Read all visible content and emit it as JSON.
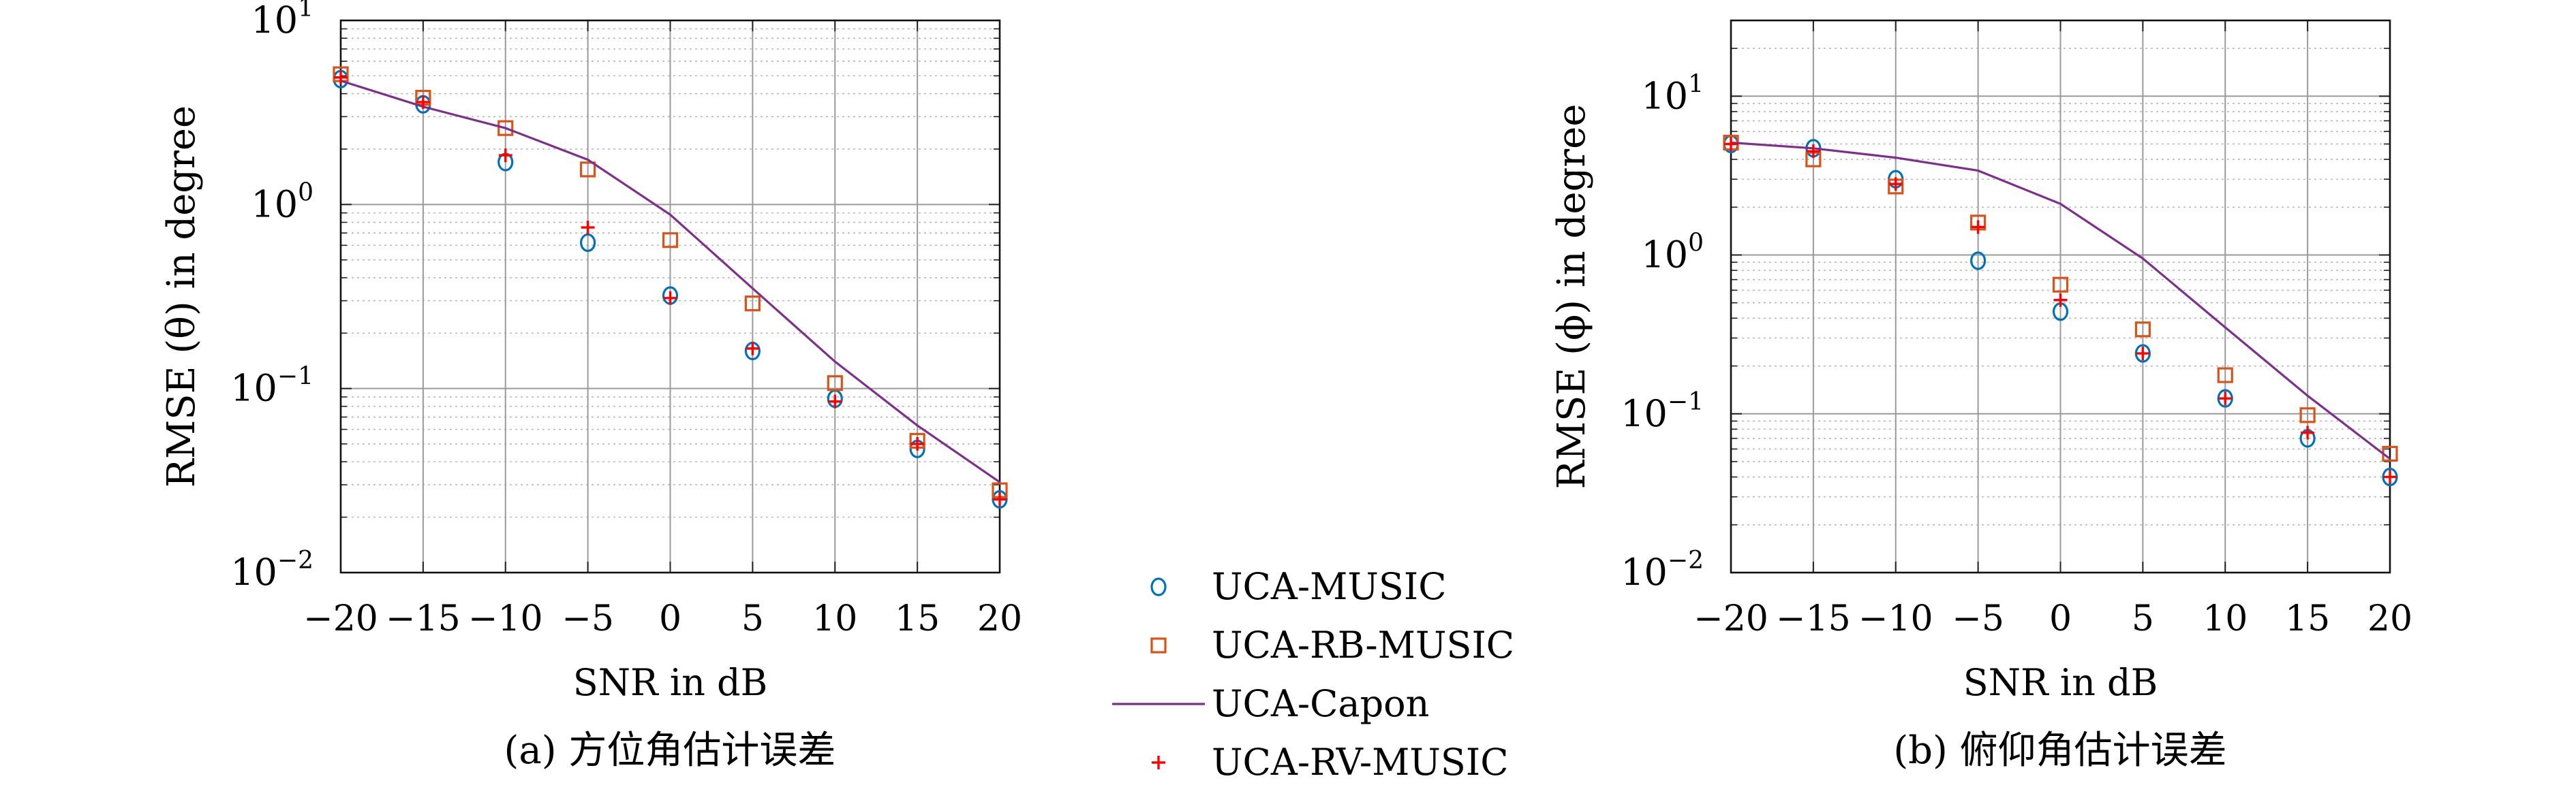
{
  "chart_data": [
    {
      "type": "scatter",
      "caption": "(a) 方位角估计误差",
      "xlabel": "SNR in dB",
      "ylabel": "RMSE (θ) in degree",
      "yscale": "log",
      "xlim": [
        -20,
        20
      ],
      "ylim": [
        0.01,
        10
      ],
      "xticks": [
        -20,
        -15,
        -10,
        -5,
        0,
        5,
        10,
        15,
        20
      ],
      "xtick_labels": [
        "−20",
        "−15",
        "−10",
        "−5",
        "0",
        "5",
        "10",
        "15",
        "20"
      ],
      "yticks": [
        0.01,
        0.1,
        1,
        10
      ],
      "ytick_labels": [
        {
          "base": "10",
          "exp": "−2"
        },
        {
          "base": "10",
          "exp": "−1"
        },
        {
          "base": "10",
          "exp": "0"
        },
        {
          "base": "10",
          "exp": "1"
        }
      ],
      "grid": true,
      "x": [
        -20,
        -15,
        -10,
        -5,
        0,
        5,
        10,
        15,
        20
      ],
      "series": [
        {
          "name": "UCA-MUSIC",
          "marker": "circle",
          "color": "#0072BD",
          "values": [
            4.8,
            3.5,
            1.7,
            0.62,
            0.32,
            0.16,
            0.088,
            0.047,
            0.025
          ]
        },
        {
          "name": "UCA-RB-MUSIC",
          "marker": "square",
          "color": "#D95319",
          "values": [
            5.1,
            3.8,
            2.6,
            1.55,
            0.64,
            0.29,
            0.107,
            0.052,
            0.028
          ]
        },
        {
          "name": "UCA-Capon",
          "marker": "line",
          "color": "#7E2F8E",
          "values": [
            4.7,
            3.4,
            2.6,
            1.75,
            0.88,
            0.35,
            0.14,
            0.063,
            0.031
          ]
        },
        {
          "name": "UCA-RV-MUSIC",
          "marker": "plus",
          "color": "#FF0000",
          "values": [
            4.9,
            3.6,
            1.85,
            0.75,
            0.31,
            0.165,
            0.085,
            0.05,
            0.025
          ]
        }
      ]
    },
    {
      "type": "scatter",
      "caption": "(b) 俯仰角估计误差",
      "xlabel": "SNR in dB",
      "ylabel": "RMSE (ϕ) in degree",
      "yscale": "log",
      "xlim": [
        -20,
        20
      ],
      "ylim": [
        0.01,
        30
      ],
      "xticks": [
        -20,
        -15,
        -10,
        -5,
        0,
        5,
        10,
        15,
        20
      ],
      "xtick_labels": [
        "−20",
        "−15",
        "−10",
        "−5",
        "0",
        "5",
        "10",
        "15",
        "20"
      ],
      "yticks": [
        0.01,
        0.1,
        1,
        10
      ],
      "ytick_labels": [
        {
          "base": "10",
          "exp": "−2"
        },
        {
          "base": "10",
          "exp": "−1"
        },
        {
          "base": "10",
          "exp": "0"
        },
        {
          "base": "10",
          "exp": "1"
        }
      ],
      "grid": true,
      "x": [
        -20,
        -15,
        -10,
        -5,
        0,
        5,
        10,
        15,
        20
      ],
      "series": [
        {
          "name": "UCA-MUSIC",
          "marker": "circle",
          "color": "#0072BD",
          "values": [
            5.0,
            4.7,
            3.0,
            0.92,
            0.44,
            0.24,
            0.125,
            0.07,
            0.04
          ]
        },
        {
          "name": "UCA-RB-MUSIC",
          "marker": "square",
          "color": "#D95319",
          "values": [
            5.1,
            4.0,
            2.7,
            1.6,
            0.65,
            0.34,
            0.175,
            0.098,
            0.056
          ]
        },
        {
          "name": "UCA-Capon",
          "marker": "line",
          "color": "#7E2F8E",
          "values": [
            5.1,
            4.7,
            4.1,
            3.4,
            2.1,
            0.95,
            0.35,
            0.13,
            0.052
          ]
        },
        {
          "name": "UCA-RV-MUSIC",
          "marker": "plus",
          "color": "#FF0000",
          "values": [
            5.0,
            4.5,
            2.8,
            1.5,
            0.52,
            0.24,
            0.125,
            0.076,
            0.04
          ]
        }
      ]
    }
  ],
  "legend": {
    "placement": "bottom-center",
    "entries": [
      {
        "label": "UCA-MUSIC",
        "marker": "circle",
        "color": "#0072BD"
      },
      {
        "label": "UCA-RB-MUSIC",
        "marker": "square",
        "color": "#D95319"
      },
      {
        "label": "UCA-Capon",
        "marker": "line",
        "color": "#7E2F8E"
      },
      {
        "label": "UCA-RV-MUSIC",
        "marker": "plus",
        "color": "#FF0000"
      }
    ]
  }
}
